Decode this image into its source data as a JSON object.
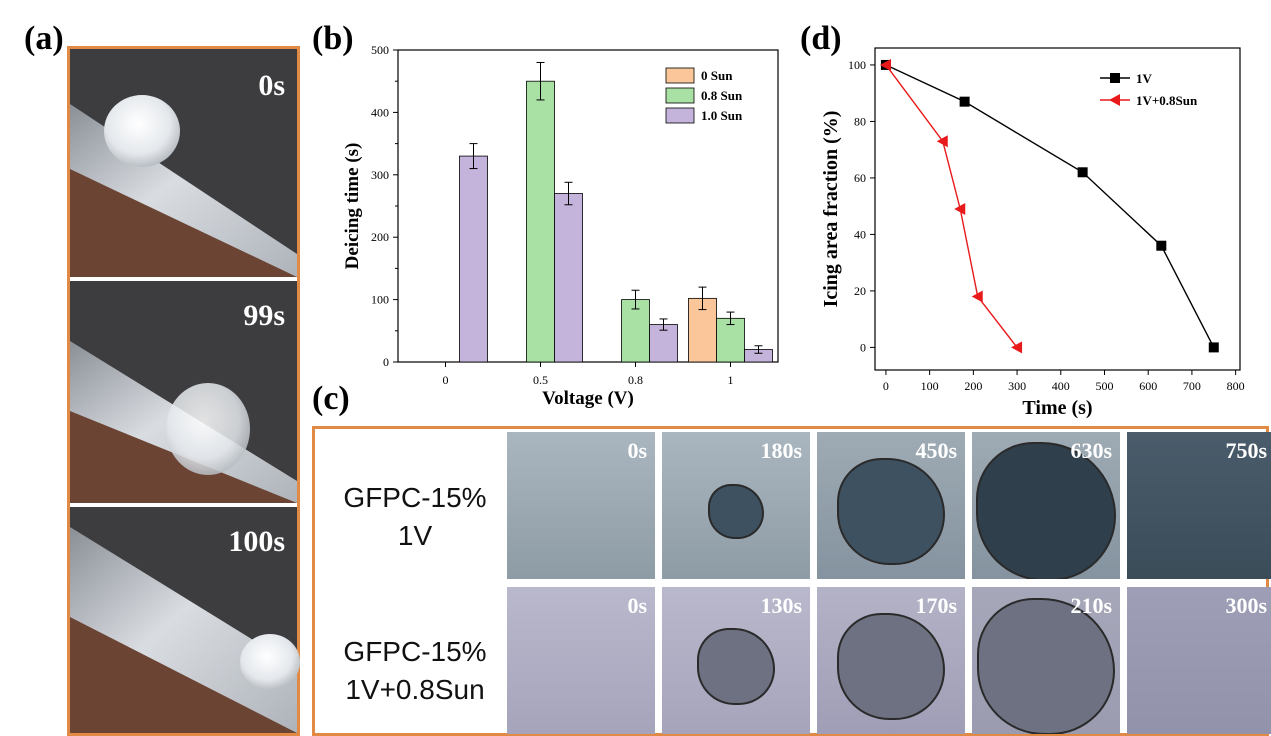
{
  "panels": {
    "a": "(a)",
    "b": "(b)",
    "c": "(c)",
    "d": "(d)"
  },
  "panel_a": {
    "times": [
      "0s",
      "99s",
      "100s"
    ]
  },
  "panel_c": {
    "rows": [
      {
        "label_line1": "GFPC-15%",
        "label_line2": "1V",
        "times": [
          "0s",
          "180s",
          "450s",
          "630s",
          "750s"
        ]
      },
      {
        "label_line1": "GFPC-15%",
        "label_line2": "1V+0.8Sun",
        "times": [
          "0s",
          "130s",
          "170s",
          "210s",
          "300s"
        ]
      }
    ]
  },
  "colors": {
    "frame": "#e08a45",
    "orange": "#fbc79a",
    "green": "#a9e0a4",
    "purple": "#c4b3db",
    "black": "#000000",
    "red": "#e8191b"
  },
  "chart_data": [
    {
      "id": "b",
      "type": "bar",
      "title": "",
      "xlabel": "Voltage (V)",
      "ylabel": "Deicing time (s)",
      "categories": [
        "0",
        "0.5",
        "0.8",
        "1"
      ],
      "ylim": [
        0,
        500
      ],
      "yticks": [
        0,
        100,
        200,
        300,
        400,
        500
      ],
      "legend_position": "top-right",
      "series": [
        {
          "name": "0 Sun",
          "color": "#fbc79a",
          "values": [
            null,
            null,
            null,
            102
          ],
          "errors": [
            null,
            null,
            null,
            18
          ]
        },
        {
          "name": "0.8 Sun",
          "color": "#a9e0a4",
          "values": [
            null,
            450,
            100,
            70
          ],
          "errors": [
            null,
            30,
            15,
            10
          ]
        },
        {
          "name": "1.0 Sun",
          "color": "#c4b3db",
          "values": [
            330,
            270,
            60,
            20
          ],
          "errors": [
            20,
            18,
            9,
            6
          ]
        }
      ]
    },
    {
      "id": "d",
      "type": "line",
      "title": "",
      "xlabel": "Time (s)",
      "ylabel": "Icing area fraction (%)",
      "xlim": [
        -25,
        810
      ],
      "ylim": [
        -8,
        106
      ],
      "xticks": [
        0,
        100,
        200,
        300,
        400,
        500,
        600,
        700,
        800
      ],
      "yticks": [
        0,
        20,
        40,
        60,
        80,
        100
      ],
      "legend_position": "top-right",
      "series": [
        {
          "name": "1V",
          "color": "#000000",
          "marker": "square",
          "x": [
            0,
            180,
            450,
            630,
            750
          ],
          "y": [
            100,
            87,
            62,
            36,
            0
          ]
        },
        {
          "name": "1V+0.8Sun",
          "color": "#e8191b",
          "marker": "triangle-left",
          "x": [
            0,
            130,
            170,
            210,
            300
          ],
          "y": [
            100,
            73,
            49,
            18,
            0
          ]
        }
      ]
    }
  ]
}
